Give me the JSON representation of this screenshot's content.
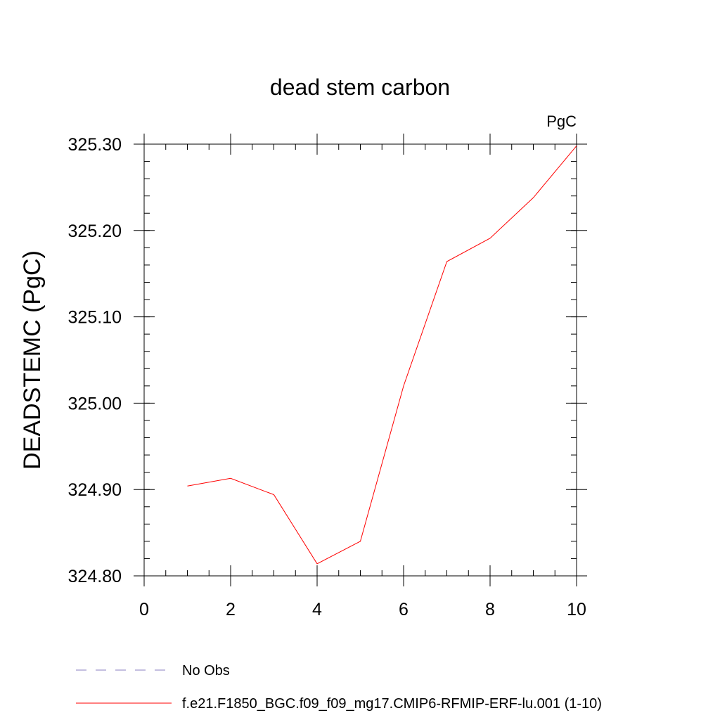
{
  "chart_data": {
    "type": "line",
    "title": "dead stem carbon",
    "units_label": "PgC",
    "ylabel": "DEADSTEMC  (PgC)",
    "xlabel": "",
    "xlim": [
      0,
      10
    ],
    "ylim": [
      324.8,
      325.3
    ],
    "xticks": [
      0,
      2,
      4,
      6,
      8,
      10
    ],
    "xtick_labels": [
      "0",
      "2",
      "4",
      "6",
      "8",
      "10"
    ],
    "yticks": [
      324.8,
      324.9,
      325.0,
      325.1,
      325.2,
      325.3
    ],
    "ytick_labels": [
      "324.80",
      "324.90",
      "325.00",
      "325.10",
      "325.20",
      "325.30"
    ],
    "grid": false,
    "series": [
      {
        "name": "f.e21.F1850_BGC.f09_f09_mg17.CMIP6-RFMIP-ERF-lu.001 (1-10)",
        "color": "#ff0000",
        "style": "solid",
        "x": [
          1,
          2,
          3,
          4,
          5,
          6,
          7,
          8,
          9,
          10
        ],
        "values": [
          324.904,
          324.913,
          324.894,
          324.814,
          324.84,
          325.02,
          325.164,
          325.191,
          325.238,
          325.298
        ]
      }
    ],
    "legend": {
      "placement": "bottom-left",
      "entries": [
        {
          "label": "No Obs",
          "color": "#8a7fc0",
          "style": "dashed"
        },
        {
          "label": "f.e21.F1850_BGC.f09_f09_mg17.CMIP6-RFMIP-ERF-lu.001 (1-10)",
          "color": "#ff0000",
          "style": "solid"
        }
      ]
    }
  }
}
